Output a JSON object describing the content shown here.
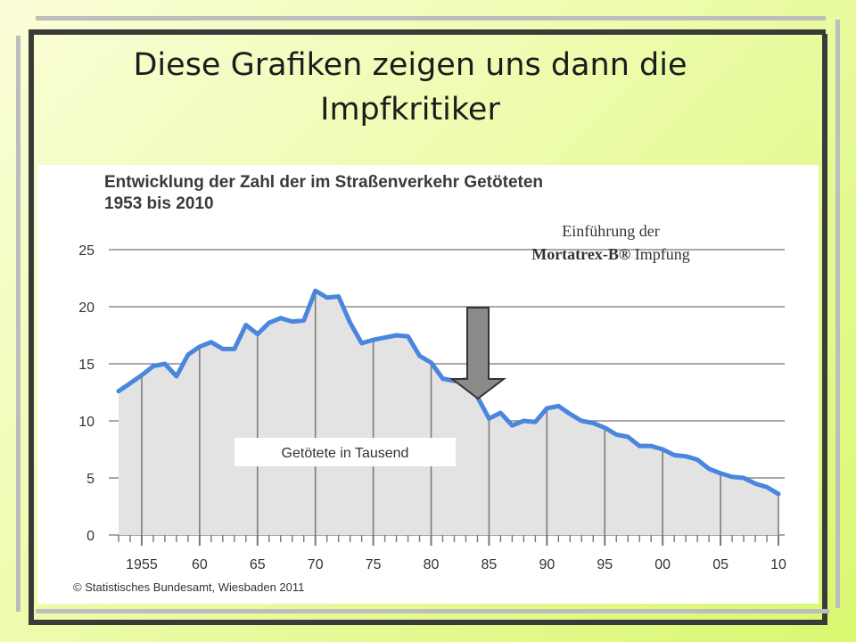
{
  "slide": {
    "title_line1": "Diese Grafiken zeigen uns dann die",
    "title_line2": "Impfkritiker"
  },
  "annotation": {
    "line1": "Einführung der",
    "product": "Mortatrex-B®",
    "suffix": " Impfung",
    "arrow_year": 1986
  },
  "chart_data": {
    "type": "area",
    "title_line1": "Entwicklung der Zahl der im Straßenverkehr Getöteten",
    "title_line2": "1953 bis 2010",
    "series_label": "Getötete in Tausend",
    "source": "© Statistisches Bundesamt, Wiesbaden 2011",
    "xlim": [
      1953,
      2010
    ],
    "ylim": [
      0,
      25
    ],
    "yticks": [
      0,
      5,
      10,
      15,
      20,
      25
    ],
    "xticks": [
      1955,
      1960,
      1965,
      1970,
      1975,
      1980,
      1985,
      1990,
      1995,
      2000,
      2005,
      2010
    ],
    "xtick_labels": [
      "1955",
      "60",
      "65",
      "70",
      "75",
      "80",
      "85",
      "90",
      "95",
      "00",
      "05",
      "10"
    ],
    "grid": true,
    "colors": {
      "line": "#4a86de",
      "fill": "#e3e3e3",
      "grid": "#8c8c8c"
    },
    "x": [
      1953,
      1954,
      1955,
      1956,
      1957,
      1958,
      1959,
      1960,
      1961,
      1962,
      1963,
      1964,
      1965,
      1966,
      1967,
      1968,
      1969,
      1970,
      1971,
      1972,
      1973,
      1974,
      1975,
      1976,
      1977,
      1978,
      1979,
      1980,
      1981,
      1982,
      1983,
      1984,
      1985,
      1986,
      1987,
      1988,
      1989,
      1990,
      1991,
      1992,
      1993,
      1994,
      1995,
      1996,
      1997,
      1998,
      1999,
      2000,
      2001,
      2002,
      2003,
      2004,
      2005,
      2006,
      2007,
      2008,
      2009,
      2010
    ],
    "values": [
      12.6,
      13.3,
      14.0,
      14.8,
      15.0,
      13.9,
      15.8,
      16.5,
      16.9,
      16.3,
      16.3,
      18.4,
      17.6,
      18.6,
      19.0,
      18.7,
      18.8,
      21.4,
      20.8,
      20.9,
      18.6,
      16.8,
      17.1,
      17.3,
      17.5,
      17.4,
      15.7,
      15.1,
      13.7,
      13.5,
      13.6,
      12.1,
      10.2,
      10.7,
      9.6,
      10.0,
      9.9,
      11.1,
      11.3,
      10.6,
      10.0,
      9.8,
      9.4,
      8.8,
      8.6,
      7.8,
      7.8,
      7.5,
      7.0,
      6.9,
      6.6,
      5.8,
      5.4,
      5.1,
      5.0,
      4.5,
      4.2,
      3.6
    ]
  }
}
